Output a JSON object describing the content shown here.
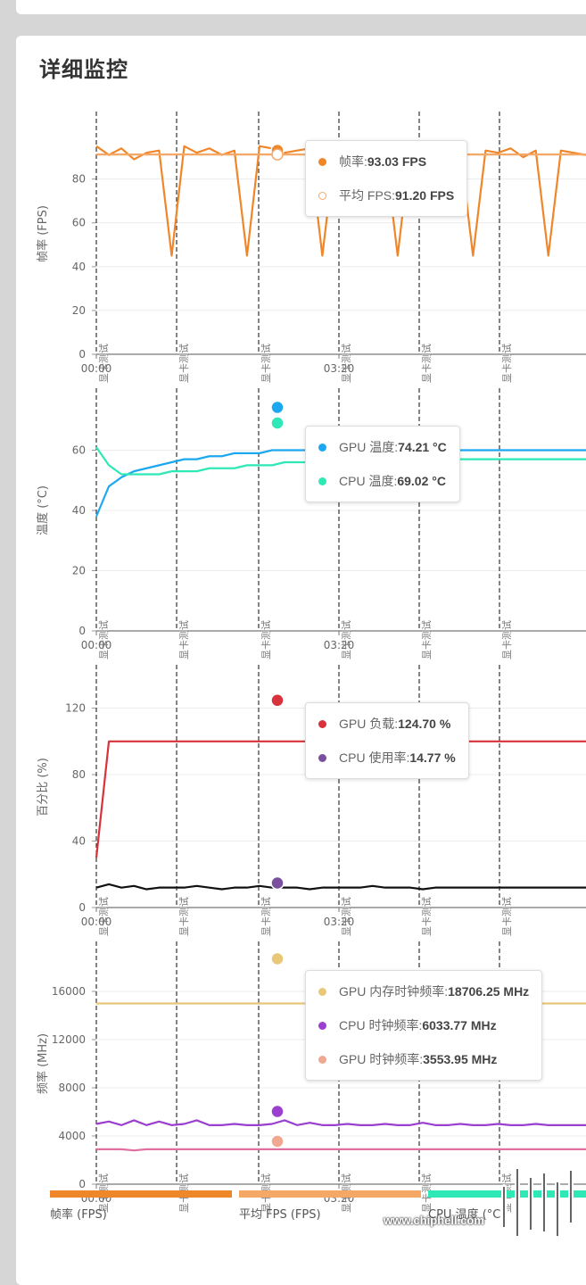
{
  "page": {
    "title": "详细监控"
  },
  "marker_label": "显卡测试",
  "x_tick_start": "00:00",
  "x_tick_mid": "03:20",
  "legend": [
    {
      "label": "帧率 (FPS)",
      "color": "#f0862a"
    },
    {
      "label": "平均 FPS (FPS)",
      "color": "#f5a866"
    },
    {
      "label": "CPU 温度 (°C)",
      "color": "#2ee8b6"
    }
  ],
  "watermark": {
    "site": "www.chiphell.com"
  },
  "chart_data": [
    {
      "type": "line",
      "ylabel": "帧率 (FPS)",
      "ylim": [
        0,
        110
      ],
      "yticks": [
        0,
        20,
        40,
        60,
        80
      ],
      "grid": true,
      "series": [
        {
          "name": "帧率",
          "color": "#f0862a",
          "values": [
            95,
            91,
            94,
            89,
            92,
            93,
            45,
            95,
            92,
            94,
            91,
            93,
            45,
            95,
            94,
            92,
            93,
            94,
            45,
            93,
            92,
            91,
            94,
            93,
            45,
            94,
            93,
            92,
            91,
            93,
            45,
            93,
            92,
            94,
            90,
            93,
            45,
            93,
            92,
            91
          ]
        },
        {
          "name": "平均 FPS",
          "color": "#f5a866",
          "values": [
            91.2,
            91.2,
            91.2,
            91.2,
            91.2,
            91.2,
            91.2,
            91.2,
            91.2,
            91.2,
            91.2,
            91.2,
            91.2,
            91.2,
            91.2,
            91.2,
            91.2,
            91.2,
            91.2,
            91.2,
            91.2,
            91.2,
            91.2,
            91.2,
            91.2,
            91.2,
            91.2,
            91.2,
            91.2,
            91.2,
            91.2,
            91.2,
            91.2,
            91.2,
            91.2,
            91.2,
            91.2,
            91.2,
            91.2,
            91.2
          ]
        }
      ],
      "tooltip": [
        {
          "label": "帧率:",
          "value": "93.03 FPS",
          "color": "#f0862a",
          "hollow": false
        },
        {
          "label": "平均 FPS:",
          "value": "91.20 FPS",
          "color": "#f5a866",
          "hollow": true
        }
      ]
    },
    {
      "type": "line",
      "ylabel": "温度 (°C)",
      "ylim": [
        0,
        80
      ],
      "yticks": [
        0,
        20,
        40,
        60
      ],
      "grid": true,
      "series": [
        {
          "name": "GPU 温度",
          "color": "#1ca8f0",
          "values": [
            38,
            48,
            51,
            53,
            54,
            55,
            56,
            57,
            57,
            58,
            58,
            59,
            59,
            59,
            60,
            60,
            60,
            60,
            60,
            60,
            60,
            60,
            60,
            60,
            60,
            60,
            60,
            60,
            60,
            60,
            60,
            60,
            60,
            60,
            60,
            60,
            60,
            60,
            60,
            60
          ]
        },
        {
          "name": "CPU 温度",
          "color": "#2ee8b6",
          "values": [
            61,
            55,
            52,
            52,
            52,
            52,
            53,
            53,
            53,
            54,
            54,
            54,
            55,
            55,
            55,
            56,
            56,
            56,
            56,
            56,
            56,
            56,
            57,
            57,
            57,
            57,
            57,
            57,
            57,
            57,
            57,
            57,
            57,
            57,
            57,
            57,
            57,
            57,
            57,
            57
          ]
        }
      ],
      "tooltip": [
        {
          "label": "GPU 温度:",
          "value": "74.21 °C",
          "color": "#1ca8f0",
          "hollow": false
        },
        {
          "label": "CPU 温度:",
          "value": "69.02 °C",
          "color": "#2ee8b6",
          "hollow": false
        }
      ]
    },
    {
      "type": "line",
      "ylabel": "百分比 (%)",
      "ylim": [
        0,
        145
      ],
      "yticks": [
        0,
        40,
        80,
        120
      ],
      "grid": true,
      "series": [
        {
          "name": "GPU 负载",
          "color": "#d8323a",
          "values": [
            30,
            100,
            100,
            100,
            100,
            100,
            100,
            100,
            100,
            100,
            100,
            100,
            100,
            100,
            100,
            100,
            100,
            100,
            100,
            100,
            100,
            100,
            100,
            100,
            100,
            100,
            100,
            100,
            100,
            100,
            100,
            100,
            100,
            100,
            100,
            100,
            100,
            100,
            100,
            100
          ]
        },
        {
          "name": "CPU 使用率",
          "color": "#111111",
          "values": [
            12,
            14,
            12,
            13,
            11,
            12,
            12,
            12,
            13,
            12,
            11,
            12,
            12,
            13,
            12,
            12,
            12,
            11,
            12,
            12,
            12,
            12,
            13,
            12,
            12,
            12,
            11,
            12,
            12,
            12,
            12,
            12,
            12,
            12,
            12,
            12,
            12,
            12,
            12,
            12
          ]
        }
      ],
      "tooltip": [
        {
          "label": "GPU 负载:",
          "value": "124.70 %",
          "color": "#d8323a",
          "hollow": false
        },
        {
          "label": "CPU 使用率:",
          "value": "14.77 %",
          "color": "#7a4fa0",
          "hollow": false
        }
      ]
    },
    {
      "type": "line",
      "ylabel": "频率 (MHz)",
      "ylim": [
        0,
        20000
      ],
      "yticks": [
        0,
        4000,
        8000,
        12000,
        16000
      ],
      "grid": true,
      "series": [
        {
          "name": "GPU 内存时钟频率",
          "color": "#e8c878",
          "values": [
            15000,
            15000,
            15000,
            15000,
            15000,
            15000,
            15000,
            15000,
            15000,
            15000,
            15000,
            15000,
            15000,
            15000,
            15000,
            15000,
            15000,
            15000,
            15000,
            15000,
            15000,
            15000,
            15000,
            15000,
            15000,
            15000,
            15000,
            15000,
            15000,
            15000,
            15000,
            15000,
            15000,
            15000,
            15000,
            15000,
            15000,
            15000,
            15000,
            15000
          ]
        },
        {
          "name": "CPU 时钟频率",
          "color": "#9a3fd0",
          "values": [
            5000,
            5200,
            4900,
            5300,
            4900,
            5200,
            4900,
            5000,
            5300,
            4900,
            4900,
            5000,
            4900,
            4900,
            5000,
            5300,
            4900,
            5100,
            4900,
            4900,
            5000,
            4900,
            4900,
            5000,
            4900,
            4900,
            5100,
            4900,
            4900,
            5000,
            4900,
            4900,
            5000,
            4900,
            4900,
            5000,
            4900,
            4900,
            4900,
            4900
          ]
        },
        {
          "name": "GPU 时钟频率",
          "color": "#e070a0",
          "values": [
            2900,
            2900,
            2900,
            2800,
            2900,
            2900,
            2900,
            2900,
            2900,
            2900,
            2900,
            2900,
            2900,
            2900,
            2900,
            2900,
            2900,
            2900,
            2900,
            2900,
            2900,
            2900,
            2900,
            2900,
            2900,
            2900,
            2900,
            2900,
            2900,
            2900,
            2900,
            2900,
            2900,
            2900,
            2900,
            2900,
            2900,
            2900,
            2900,
            2900
          ]
        }
      ],
      "tooltip": [
        {
          "label": "GPU 内存时钟频率:",
          "value": "18706.25 MHz",
          "color": "#e8c878",
          "hollow": false
        },
        {
          "label": "CPU 时钟频率:",
          "value": "6033.77 MHz",
          "color": "#9a3fd0",
          "hollow": false
        },
        {
          "label": "GPU 时钟频率:",
          "value": "3553.95 MHz",
          "color": "#f0a890",
          "hollow": false
        }
      ]
    }
  ]
}
